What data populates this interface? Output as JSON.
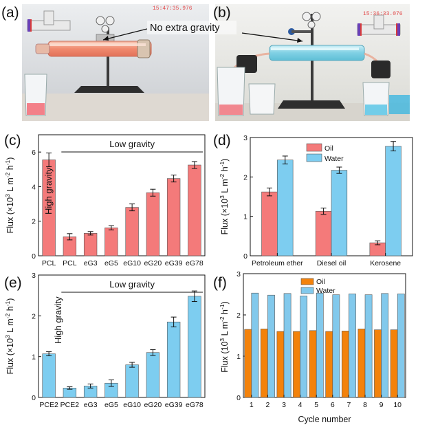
{
  "photos": {
    "a": {
      "label": "(a)",
      "timestamp": "15:47:35.976"
    },
    "b": {
      "label": "(b)",
      "timestamp": "15:36:33.076"
    },
    "annotation": "No extra gravity"
  },
  "chart_data": [
    {
      "panel": "(c)",
      "type": "bar",
      "categories": [
        "PCL",
        "PCL",
        "eG3",
        "eG5",
        "eG10",
        "eG20",
        "eG39",
        "eG78"
      ],
      "values": [
        5.55,
        1.1,
        1.3,
        1.62,
        2.8,
        3.65,
        4.47,
        5.25
      ],
      "errors": [
        0.4,
        0.18,
        0.1,
        0.12,
        0.2,
        0.2,
        0.2,
        0.2
      ],
      "ylim": [
        0,
        7
      ],
      "yticks": [
        "0",
        "2",
        "4",
        "6"
      ],
      "ylabel_parts": [
        "Flux (×10",
        "3",
        " L m",
        "-2",
        " h",
        "-1",
        ")"
      ],
      "bracket_label": "Low gravity",
      "inbar_label": "High gravity",
      "color": "#f47a7a"
    },
    {
      "panel": "(d)",
      "type": "bar",
      "categories": [
        "Petroleum ether",
        "Diesel oil",
        "Kerosene"
      ],
      "series": [
        {
          "name": "Oil",
          "values": [
            1.62,
            1.13,
            0.33
          ],
          "errors": [
            0.1,
            0.08,
            0.05
          ],
          "color": "#f47a7a"
        },
        {
          "name": "Water",
          "values": [
            2.43,
            2.17,
            2.78
          ],
          "errors": [
            0.1,
            0.08,
            0.12
          ],
          "color": "#7dcdf0"
        }
      ],
      "ylim": [
        0,
        3
      ],
      "yticks": [
        "0",
        "1",
        "2",
        "3"
      ],
      "ylabel_parts": [
        "Flux (×10",
        "3",
        " L m",
        "-2",
        " h",
        "-1",
        ")"
      ]
    },
    {
      "panel": "(e)",
      "type": "bar",
      "categories": [
        "PCE2",
        "PCE2",
        "eG3",
        "eG5",
        "eG10",
        "eG20",
        "eG39",
        "eG78"
      ],
      "values": [
        1.07,
        0.23,
        0.28,
        0.35,
        0.8,
        1.1,
        1.85,
        2.48
      ],
      "errors": [
        0.05,
        0.03,
        0.05,
        0.08,
        0.06,
        0.07,
        0.12,
        0.13
      ],
      "ylim": [
        0,
        3
      ],
      "yticks": [
        "0",
        "1",
        "2",
        "3"
      ],
      "ylabel_parts": [
        "Flux (×10",
        "3",
        " L m",
        "-2",
        " h",
        "-1",
        ")"
      ],
      "bracket_label": "Low gravity",
      "side_label": "High gravity",
      "color": "#7dcdf0"
    },
    {
      "panel": "(f)",
      "type": "bar",
      "categories": [
        "1",
        "2",
        "3",
        "4",
        "5",
        "6",
        "7",
        "8",
        "9",
        "10"
      ],
      "series": [
        {
          "name": "Oil",
          "values": [
            1.65,
            1.66,
            1.6,
            1.6,
            1.62,
            1.6,
            1.61,
            1.66,
            1.64,
            1.64
          ],
          "color": "#f3820b"
        },
        {
          "name": "Water",
          "values": [
            2.53,
            2.48,
            2.52,
            2.46,
            2.53,
            2.49,
            2.51,
            2.49,
            2.52,
            2.51
          ],
          "color": "#82c9ec"
        }
      ],
      "ylim": [
        0,
        3
      ],
      "yticks": [
        "0",
        "1",
        "2",
        "3"
      ],
      "xlabel": "Cycle number",
      "ylabel_parts": [
        "Flux (10",
        "3",
        " L m",
        "-2",
        " h",
        "-1",
        ")"
      ]
    }
  ]
}
